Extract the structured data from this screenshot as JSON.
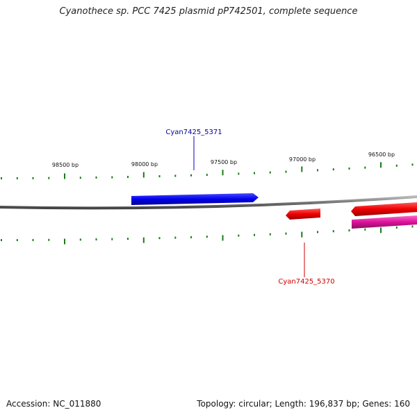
{
  "title": "Cyanothece sp. PCC 7425 plasmid pP742501, complete sequence",
  "footer": {
    "accession": "Accession: NC_011880",
    "summary": "Topology: circular; Length: 196,837 bp; Genes: 160"
  },
  "ticks": {
    "labels": [
      "98500 bp",
      "98000 bp",
      "97500 bp",
      "97000 bp",
      "96500 bp"
    ]
  },
  "genes": [
    {
      "id": "Cyan7425_5371",
      "label": "Cyan7425_5371",
      "color": "#0000ee",
      "strand": "forward"
    },
    {
      "id": "Cyan7425_5370",
      "label": "Cyan7425_5370",
      "color": "#dd0000",
      "strand": "reverse"
    },
    {
      "id": "gene-red-right",
      "label": "",
      "color": "#ee0000",
      "strand": "reverse"
    },
    {
      "id": "gene-magenta-right",
      "label": "",
      "color": "#dd1199",
      "strand": "reverse"
    }
  ],
  "colors": {
    "backbone": "#888888",
    "ticks": "#1a7a1a"
  }
}
